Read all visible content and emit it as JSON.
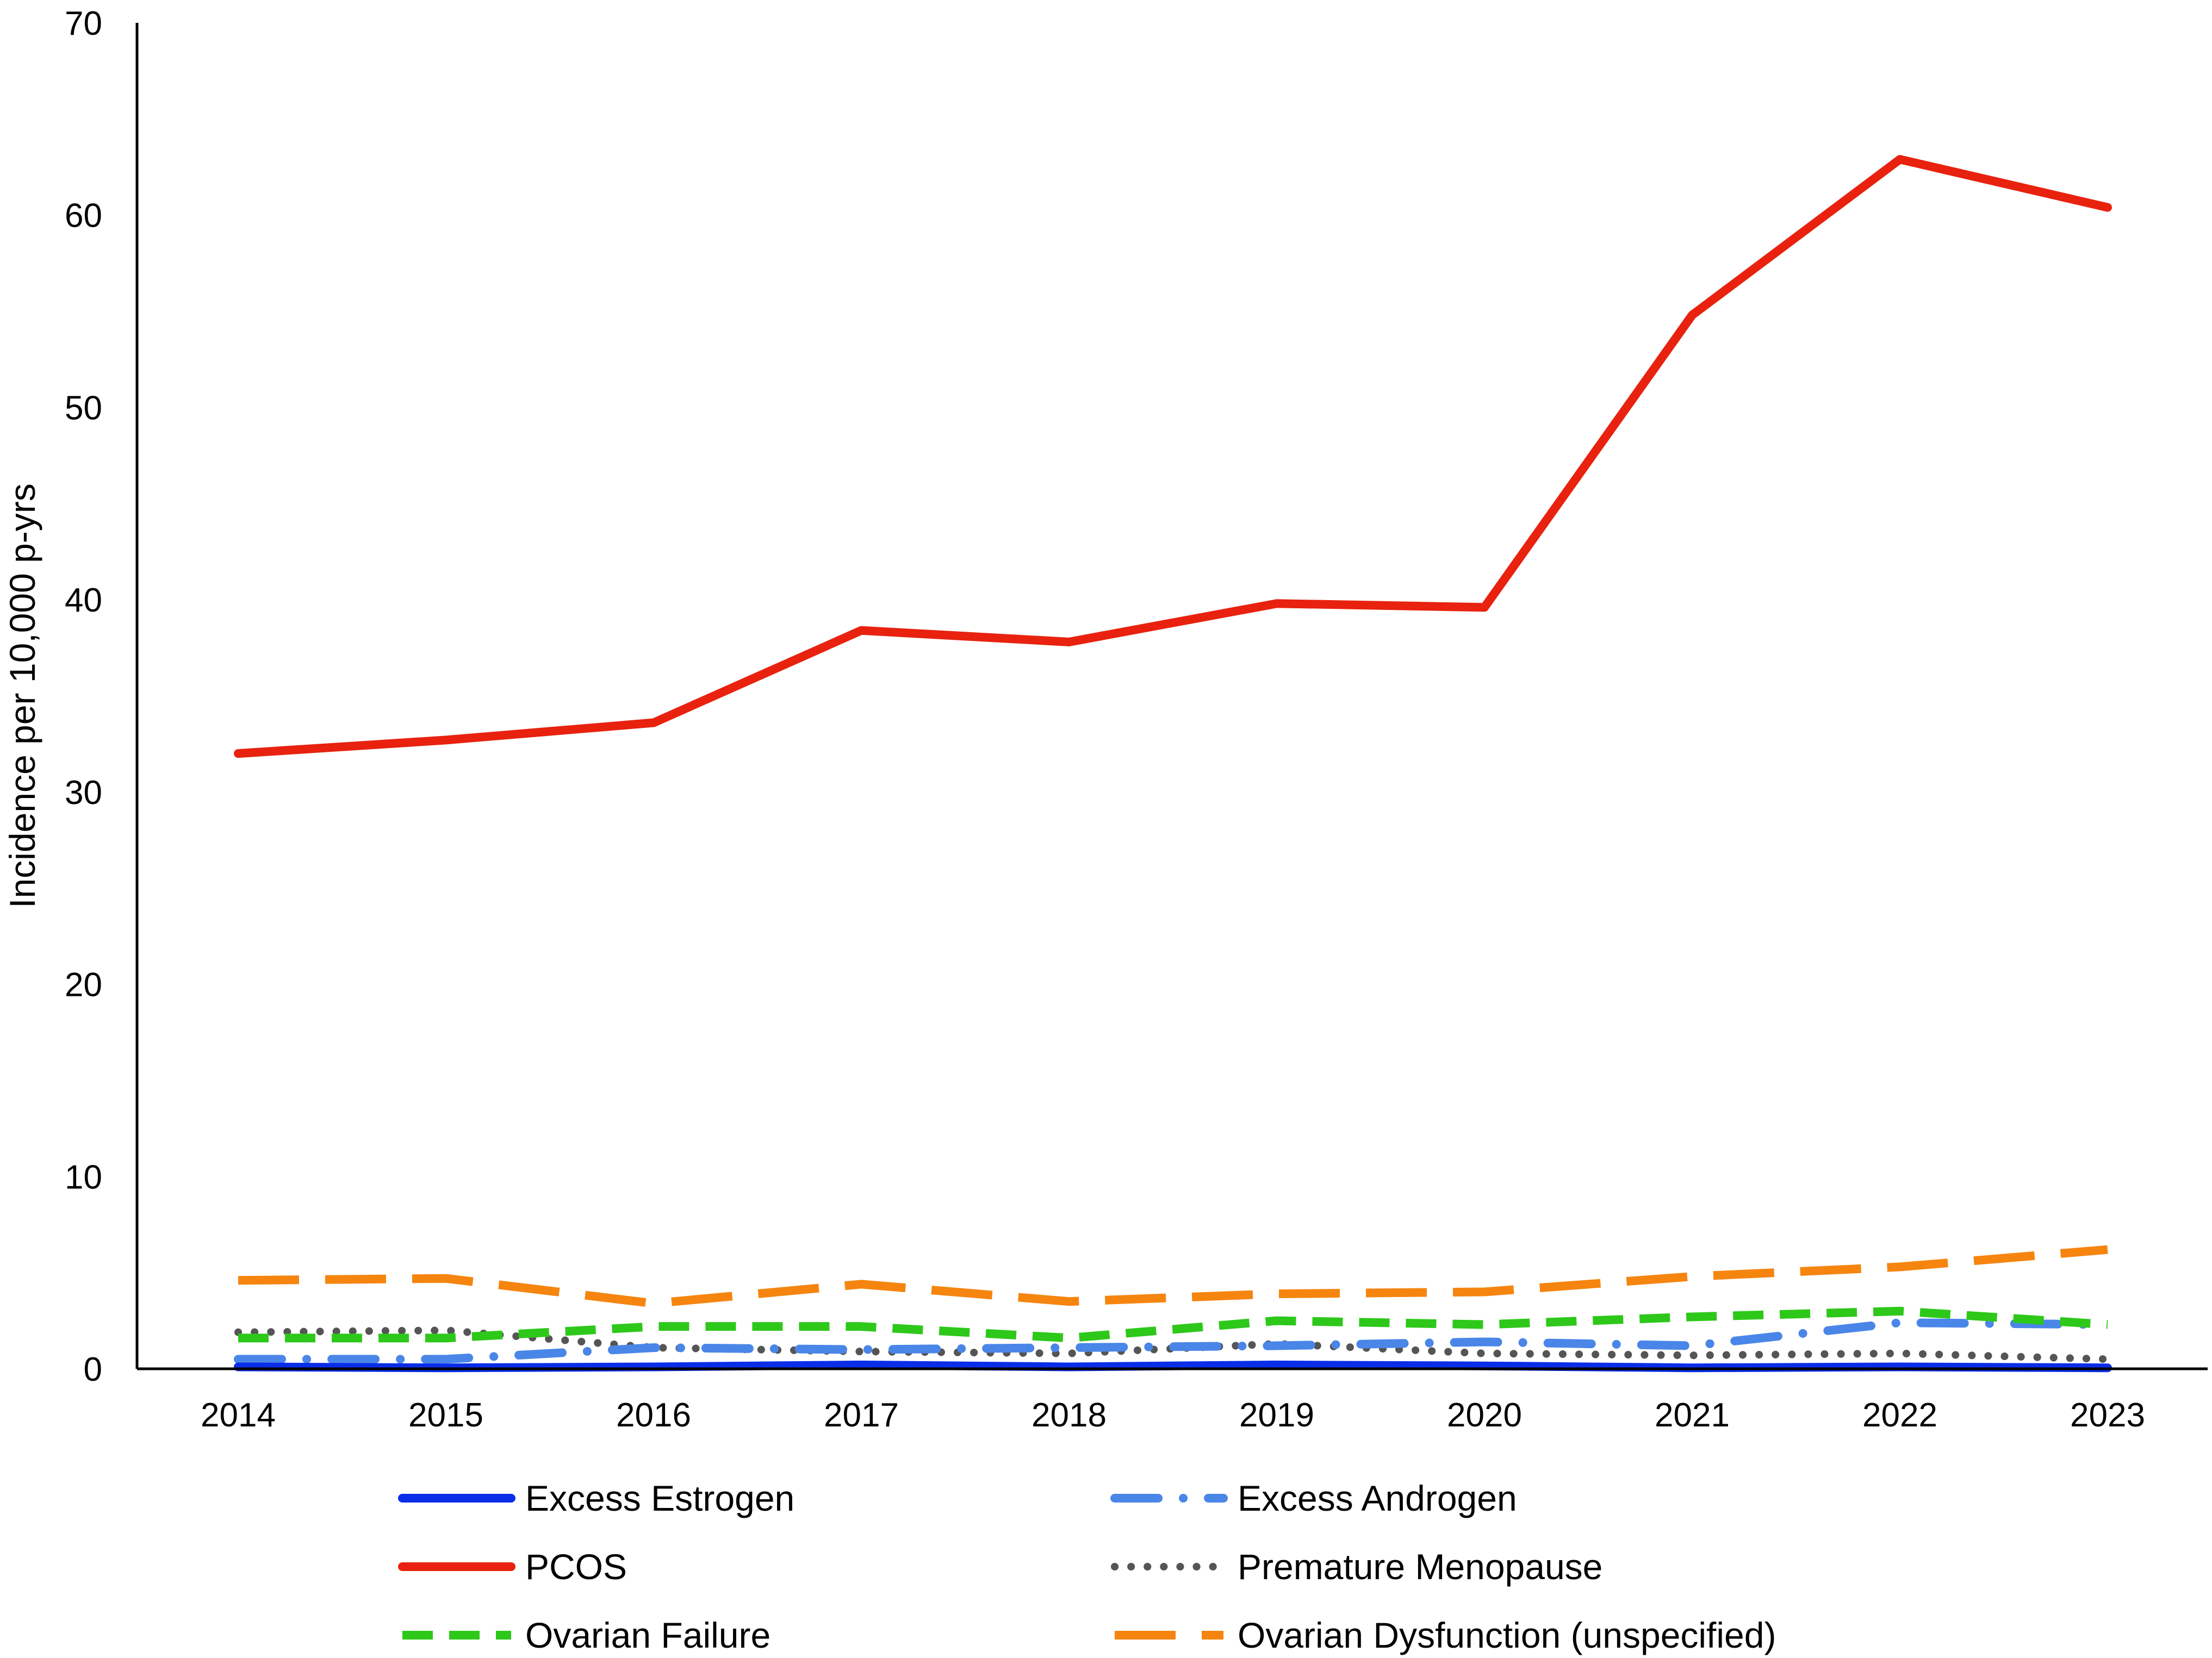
{
  "chart_data": {
    "type": "line",
    "title": "",
    "xlabel": "",
    "ylabel": "Incidence per 10,000 p-yrs",
    "ylim": [
      0,
      70
    ],
    "yticks": [
      0,
      10,
      20,
      30,
      40,
      50,
      60,
      70
    ],
    "categories": [
      "2014",
      "2015",
      "2016",
      "2017",
      "2018",
      "2019",
      "2020",
      "2021",
      "2022",
      "2023"
    ],
    "grid": false,
    "legend_position": "bottom",
    "series": [
      {
        "name": "Excess Estrogen",
        "color": "#0a2ee8",
        "style": "solid",
        "values": [
          0.1,
          0.05,
          0.1,
          0.2,
          0.1,
          0.2,
          0.15,
          0.05,
          0.1,
          0.05
        ]
      },
      {
        "name": "Excess Androgen",
        "color": "#4a86e8",
        "style": "dash-dot",
        "values": [
          0.5,
          0.5,
          1.1,
          1.0,
          1.1,
          1.2,
          1.4,
          1.2,
          2.4,
          2.3
        ]
      },
      {
        "name": "PCOS",
        "color": "#e8220f",
        "style": "solid",
        "values": [
          32.0,
          32.7,
          33.6,
          38.4,
          37.8,
          39.8,
          39.6,
          54.8,
          62.9,
          60.4
        ]
      },
      {
        "name": "Premature Menopause",
        "color": "#555555",
        "style": "dotted",
        "values": [
          1.9,
          2.0,
          1.1,
          0.9,
          0.8,
          1.3,
          0.8,
          0.7,
          0.8,
          0.5
        ]
      },
      {
        "name": "Ovarian Failure",
        "color": "#2dc81a",
        "style": "dashed",
        "values": [
          1.6,
          1.6,
          2.2,
          2.2,
          1.6,
          2.5,
          2.3,
          2.7,
          3.0,
          2.3
        ]
      },
      {
        "name": "Ovarian Dysfunction (unspecified)",
        "color": "#f5850f",
        "style": "long-dash",
        "values": [
          4.6,
          4.7,
          3.4,
          4.4,
          3.5,
          3.9,
          4.0,
          4.8,
          5.3,
          6.2
        ]
      }
    ]
  }
}
